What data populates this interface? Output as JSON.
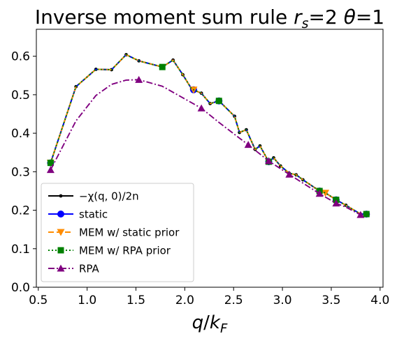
{
  "chart_data": {
    "type": "line",
    "title": {
      "prefix": "Inverse moment sum rule ",
      "rs_sym": "r",
      "rs_sub": "s",
      "rs_val": "=2 ",
      "theta_sym": "θ",
      "theta_val": "=1"
    },
    "xlabel": {
      "q": "q",
      "slash": "/",
      "k": "k",
      "sub": "F"
    },
    "ylabel": "",
    "xlim": [
      0.48,
      4.03
    ],
    "ylim": [
      0.0,
      0.67
    ],
    "xticks": [
      0.5,
      1.0,
      1.5,
      2.0,
      2.5,
      3.0,
      3.5,
      4.0
    ],
    "xtick_labels": [
      "0.5",
      "1.0",
      "1.5",
      "2.0",
      "2.5",
      "3.0",
      "3.5",
      "4.0"
    ],
    "yticks": [
      0.0,
      0.1,
      0.2,
      0.3,
      0.4,
      0.5,
      0.6
    ],
    "ytick_labels": [
      "0.0",
      "0.1",
      "0.2",
      "0.3",
      "0.4",
      "0.5",
      "0.6"
    ],
    "grid": false,
    "legend_position": "lower-left",
    "x": [
      0.626,
      0.886,
      1.09,
      1.25,
      1.4,
      1.53,
      1.77,
      1.88,
      1.98,
      2.07,
      2.17,
      2.26,
      2.35,
      2.51,
      2.56,
      2.63,
      2.72,
      2.77,
      2.86,
      2.91,
      2.98,
      3.07,
      3.14,
      3.21,
      3.38,
      3.44,
      3.55,
      3.65,
      3.8,
      3.86
    ],
    "series": [
      {
        "name": "$-\\chi(q,0)/2n$",
        "legend_label": "−χ(q, 0)/2n",
        "color": "#000000",
        "linestyle": "solid",
        "marker": "dot",
        "values": [
          0.323,
          0.521,
          0.566,
          0.565,
          0.604,
          0.588,
          0.572,
          0.59,
          0.552,
          0.515,
          0.504,
          0.477,
          0.484,
          0.444,
          0.402,
          0.409,
          0.358,
          0.367,
          0.326,
          0.336,
          0.315,
          0.296,
          0.292,
          0.279,
          0.25,
          0.245,
          0.227,
          0.213,
          0.19,
          0.19
        ]
      },
      {
        "name": "static",
        "legend_label": "static",
        "color": "#0000ff",
        "linestyle": "solid",
        "marker": "circle",
        "marker_x": [
          0.626,
          2.09,
          2.35,
          2.86,
          3.38,
          3.55,
          3.86
        ],
        "values": [
          0.323,
          0.521,
          0.566,
          0.565,
          0.604,
          0.588,
          0.572,
          0.59,
          0.552,
          0.515,
          0.504,
          0.477,
          0.484,
          0.444,
          0.402,
          0.409,
          0.358,
          0.367,
          0.326,
          0.336,
          0.315,
          0.296,
          0.292,
          0.279,
          0.25,
          0.245,
          0.227,
          0.213,
          0.19,
          0.19
        ]
      },
      {
        "name": "MEM w/ static prior",
        "legend_label": "MEM w/ static prior",
        "color": "#ff8c00",
        "linestyle": "dashed",
        "marker": "triangle-down",
        "marker_x": [
          0.626,
          2.09,
          3.44
        ],
        "values": [
          0.323,
          0.521,
          0.566,
          0.565,
          0.604,
          0.588,
          0.572,
          0.59,
          0.552,
          0.515,
          0.504,
          0.477,
          0.484,
          0.444,
          0.402,
          0.409,
          0.358,
          0.367,
          0.326,
          0.336,
          0.315,
          0.296,
          0.292,
          0.279,
          0.25,
          0.245,
          0.227,
          0.213,
          0.19,
          0.19
        ]
      },
      {
        "name": "MEM w/ RPA prior",
        "legend_label": "MEM w/ RPA prior",
        "color": "#008000",
        "linestyle": "dotted",
        "marker": "square",
        "marker_x": [
          0.626,
          1.77,
          2.35,
          2.86,
          3.38,
          3.55,
          3.86
        ],
        "values": [
          0.323,
          0.521,
          0.566,
          0.565,
          0.604,
          0.588,
          0.572,
          0.59,
          0.552,
          0.515,
          0.504,
          0.477,
          0.484,
          0.444,
          0.402,
          0.409,
          0.358,
          0.367,
          0.326,
          0.336,
          0.315,
          0.296,
          0.292,
          0.279,
          0.25,
          0.245,
          0.227,
          0.213,
          0.19,
          0.19
        ]
      },
      {
        "name": "RPA",
        "legend_label": "RPA",
        "color": "#800080",
        "linestyle": "dashdot",
        "marker": "triangle-up",
        "x": [
          0.626,
          0.886,
          1.09,
          1.25,
          1.4,
          1.53,
          1.77,
          1.98,
          2.17,
          2.35,
          2.51,
          2.65,
          2.86,
          3.07,
          3.38,
          3.55,
          3.65,
          3.8
        ],
        "marker_x": [
          0.626,
          1.53,
          2.17,
          2.65,
          2.86,
          3.07,
          3.38,
          3.55,
          3.8
        ],
        "values": [
          0.305,
          0.432,
          0.498,
          0.527,
          0.538,
          0.539,
          0.522,
          0.492,
          0.465,
          0.428,
          0.397,
          0.37,
          0.328,
          0.293,
          0.243,
          0.218,
          0.208,
          0.188
        ]
      }
    ]
  }
}
